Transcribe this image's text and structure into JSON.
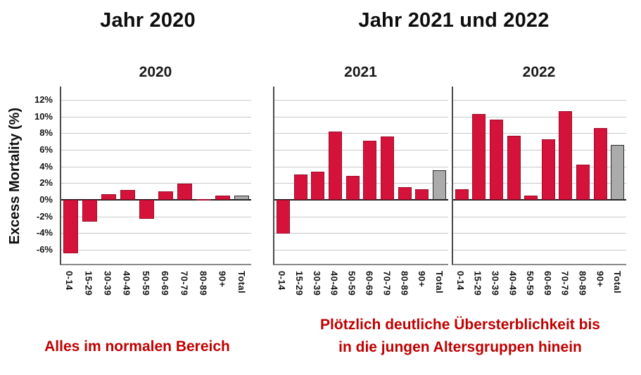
{
  "header": {
    "title_left": "Jahr 2020",
    "title_right": "Jahr 2021 und 2022"
  },
  "captions": {
    "left": "Alles im normalen Bereich",
    "right_line1": "Plötzlich deutliche Übersterblichkeit bis",
    "right_line2": "in die jungen Altersgruppen hinein"
  },
  "colors": {
    "bar_red": "#D51239",
    "bar_red_border": "#9D0D2B",
    "bar_gray": "#ABABAB",
    "bar_gray_border": "#2B2B2B",
    "caption_red": "#C00000"
  },
  "chart_data": {
    "type": "bar",
    "ylabel": "Excess Mortality (%)",
    "categories": [
      "0-14",
      "15-29",
      "30-39",
      "40-49",
      "50-59",
      "60-69",
      "70-79",
      "80-89",
      "90+",
      "Total"
    ],
    "total_category": "Total",
    "y_ticks": [
      "12%",
      "10%",
      "8%",
      "6%",
      "4%",
      "2%",
      "0%",
      "-2%",
      "-4%",
      "-6%"
    ],
    "ylim": [
      -7.7,
      13.6
    ],
    "grid": "horizontal",
    "legend": "none",
    "panels": [
      {
        "title": "2020",
        "values": [
          -6.4,
          -2.6,
          0.7,
          1.2,
          -2.3,
          1.0,
          1.9,
          0.1,
          0.5,
          0.5
        ]
      },
      {
        "title": "2021",
        "values": [
          -4.1,
          3.0,
          3.4,
          8.2,
          2.9,
          7.1,
          7.6,
          1.5,
          1.3,
          3.5
        ]
      },
      {
        "title": "2022",
        "values": [
          1.3,
          10.3,
          9.6,
          7.7,
          0.5,
          7.3,
          10.6,
          4.2,
          8.6,
          6.6
        ]
      }
    ]
  }
}
